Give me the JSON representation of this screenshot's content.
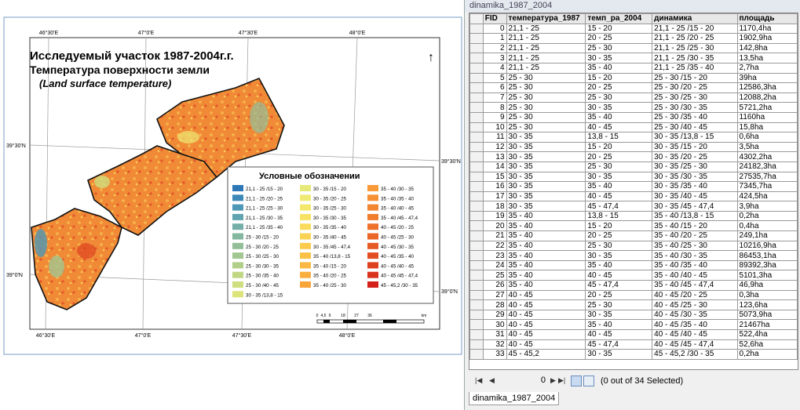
{
  "map": {
    "title_lines": [
      "Исследуемый участок 1987-2004г.г.",
      "Температура поверхности земли",
      "(Land surface temperature)"
    ],
    "lon_top": [
      "46°30'E",
      "47°0'E",
      "47°30'E",
      "48°0'E"
    ],
    "lon_bottom": [
      "46°30'E",
      "47°0'E",
      "47°30'E",
      "48°0'E"
    ],
    "lat_left": [
      "39°30'N",
      "39°0'N"
    ],
    "lat_right": [
      "39°30'N",
      "39°0'N"
    ],
    "scale_labels": [
      "0",
      "4,5",
      "9",
      "18",
      "27",
      "36",
      "km"
    ],
    "legend": {
      "title": "Условные обозначении",
      "items": [
        {
          "label": "21,1 - 25 /15 - 20",
          "color": "#2f78b8"
        },
        {
          "label": "21,1 - 25 /20 - 25",
          "color": "#3d88b8"
        },
        {
          "label": "21,1 - 25 /25 - 30",
          "color": "#4f97b6"
        },
        {
          "label": "21,1 - 25 /30 - 35",
          "color": "#62a3b0"
        },
        {
          "label": "21,1 - 25 /35 - 40",
          "color": "#74aea8"
        },
        {
          "label": "25 - 30 /15 - 20",
          "color": "#84b7a0"
        },
        {
          "label": "25 - 30 /20 - 25",
          "color": "#93bf98"
        },
        {
          "label": "25 - 30 /25 - 30",
          "color": "#a2c790"
        },
        {
          "label": "25 - 30 /30 - 35",
          "color": "#b2cf89"
        },
        {
          "label": "25 - 30 /35 - 40",
          "color": "#c1d783"
        },
        {
          "label": "25 - 30 /40 - 45",
          "color": "#cfde7e"
        },
        {
          "label": "30 - 35 /13,8 - 15",
          "color": "#dce47a"
        },
        {
          "label": "30 - 35 /15 - 20",
          "color": "#e6e878"
        },
        {
          "label": "30 - 35 /20 - 25",
          "color": "#eeea74"
        },
        {
          "label": "30 - 35 /25 - 30",
          "color": "#f4e86c"
        },
        {
          "label": "30 - 35 /30 - 35",
          "color": "#f8e264"
        },
        {
          "label": "30 - 35 /35 - 40",
          "color": "#fadb5c"
        },
        {
          "label": "30 - 35 /40 - 45",
          "color": "#fbd354"
        },
        {
          "label": "30 - 35 /45 - 47,4",
          "color": "#fbca4d"
        },
        {
          "label": "35 - 40 /13,8 - 15",
          "color": "#fbc147"
        },
        {
          "label": "35 - 40 /15 - 20",
          "color": "#fbb842"
        },
        {
          "label": "35 - 40 /20 - 25",
          "color": "#faae3e"
        },
        {
          "label": "35 - 40 /25 - 30",
          "color": "#f9a43a"
        },
        {
          "label": "35 - 40 /30 - 35",
          "color": "#f79a37"
        },
        {
          "label": "35 - 40 /35 - 40",
          "color": "#f59034"
        },
        {
          "label": "35 - 40 /40 - 45",
          "color": "#f38631"
        },
        {
          "label": "35 - 40 /45 - 47,4",
          "color": "#f07c2e"
        },
        {
          "label": "40 - 45 /20 - 25",
          "color": "#ed712b"
        },
        {
          "label": "40 - 45 /25 - 30",
          "color": "#ea6628"
        },
        {
          "label": "40 - 45 /30 - 35",
          "color": "#e65a25"
        },
        {
          "label": "40 - 45 /35 - 40",
          "color": "#e24e22"
        },
        {
          "label": "40 - 45 /40 - 45",
          "color": "#de4120"
        },
        {
          "label": "40 - 45 /45 - 47,4",
          "color": "#d9331d"
        },
        {
          "label": "45 - 45,2 /30 - 35",
          "color": "#d4221a"
        }
      ]
    }
  },
  "table": {
    "window_title": "dinamika_1987_2004",
    "columns": [
      "FID",
      "температура_1987",
      "темп_ра_2004",
      "динамика",
      "площадь"
    ],
    "rows": [
      [
        "0",
        "21,1 - 25",
        "15 - 20",
        "21,1 - 25 /15 - 20",
        "1170,4ha"
      ],
      [
        "1",
        "21,1 - 25",
        "20 - 25",
        "21,1 - 25 /20 - 25",
        "1902,9ha"
      ],
      [
        "2",
        "21,1 - 25",
        "25 - 30",
        "21,1 - 25 /25 - 30",
        "142,8ha"
      ],
      [
        "3",
        "21,1 - 25",
        "30 - 35",
        "21,1 - 25 /30 - 35",
        "13,5ha"
      ],
      [
        "4",
        "21,1 - 25",
        "35 - 40",
        "21,1 - 25 /35 - 40",
        "2,7ha"
      ],
      [
        "5",
        "25 - 30",
        "15 - 20",
        "25 - 30 /15 - 20",
        "39ha"
      ],
      [
        "6",
        "25 - 30",
        "20 - 25",
        "25 - 30 /20 - 25",
        "12586,3ha"
      ],
      [
        "7",
        "25 - 30",
        "25 - 30",
        "25 - 30 /25 - 30",
        "12088,2ha"
      ],
      [
        "8",
        "25 - 30",
        "30 - 35",
        "25 - 30 /30 - 35",
        "5721,2ha"
      ],
      [
        "9",
        "25 - 30",
        "35 - 40",
        "25 - 30 /35 - 40",
        "1160ha"
      ],
      [
        "10",
        "25 - 30",
        "40 - 45",
        "25 - 30 /40 - 45",
        "15,8ha"
      ],
      [
        "11",
        "30 - 35",
        "13,8 - 15",
        "30 - 35 /13,8 - 15",
        "0,6ha"
      ],
      [
        "12",
        "30 - 35",
        "15 - 20",
        "30 - 35 /15 - 20",
        "3,5ha"
      ],
      [
        "13",
        "30 - 35",
        "20 - 25",
        "30 - 35 /20 - 25",
        "4302,2ha"
      ],
      [
        "14",
        "30 - 35",
        "25 - 30",
        "30 - 35 /25 - 30",
        "24182,3ha"
      ],
      [
        "15",
        "30 - 35",
        "30 - 35",
        "30 - 35 /30 - 35",
        "27535,7ha"
      ],
      [
        "16",
        "30 - 35",
        "35 - 40",
        "30 - 35 /35 - 40",
        "7345,7ha"
      ],
      [
        "17",
        "30 - 35",
        "40 - 45",
        "30 - 35 /40 - 45",
        "424,5ha"
      ],
      [
        "18",
        "30 - 35",
        "45 - 47,4",
        "30 - 35 /45 - 47,4",
        "3,9ha"
      ],
      [
        "19",
        "35 - 40",
        "13,8 - 15",
        "35 - 40 /13,8 - 15",
        "0,2ha"
      ],
      [
        "20",
        "35 - 40",
        "15 - 20",
        "35 - 40 /15 - 20",
        "0,4ha"
      ],
      [
        "21",
        "35 - 40",
        "20 - 25",
        "35 - 40 /20 - 25",
        "249,1ha"
      ],
      [
        "22",
        "35 - 40",
        "25 - 30",
        "35 - 40 /25 - 30",
        "10216,9ha"
      ],
      [
        "23",
        "35 - 40",
        "30 - 35",
        "35 - 40 /30 - 35",
        "86453,1ha"
      ],
      [
        "24",
        "35 - 40",
        "35 - 40",
        "35 - 40 /35 - 40",
        "89392,3ha"
      ],
      [
        "25",
        "35 - 40",
        "40 - 45",
        "35 - 40 /40 - 45",
        "5101,3ha"
      ],
      [
        "26",
        "35 - 40",
        "45 - 47,4",
        "35 - 40 /45 - 47,4",
        "46,9ha"
      ],
      [
        "27",
        "40 - 45",
        "20 - 25",
        "40 - 45 /20 - 25",
        "0,3ha"
      ],
      [
        "28",
        "40 - 45",
        "25 - 30",
        "40 - 45 /25 - 30",
        "123,6ha"
      ],
      [
        "29",
        "40 - 45",
        "30 - 35",
        "40 - 45 /30 - 35",
        "5073,9ha"
      ],
      [
        "30",
        "40 - 45",
        "35 - 40",
        "40 - 45 /35 - 40",
        "21467ha"
      ],
      [
        "31",
        "40 - 45",
        "40 - 45",
        "40 - 45 /40 - 45",
        "522,4ha"
      ],
      [
        "32",
        "40 - 45",
        "45 - 47,4",
        "40 - 45 /45 - 47,4",
        "52,6ha"
      ],
      [
        "33",
        "45 - 45,2",
        "30 - 35",
        "45 - 45,2 /30 - 35",
        "0,2ha"
      ]
    ],
    "record": "0",
    "status": "(0 out of 34 Selected)",
    "tab": "dinamika_1987_2004"
  }
}
